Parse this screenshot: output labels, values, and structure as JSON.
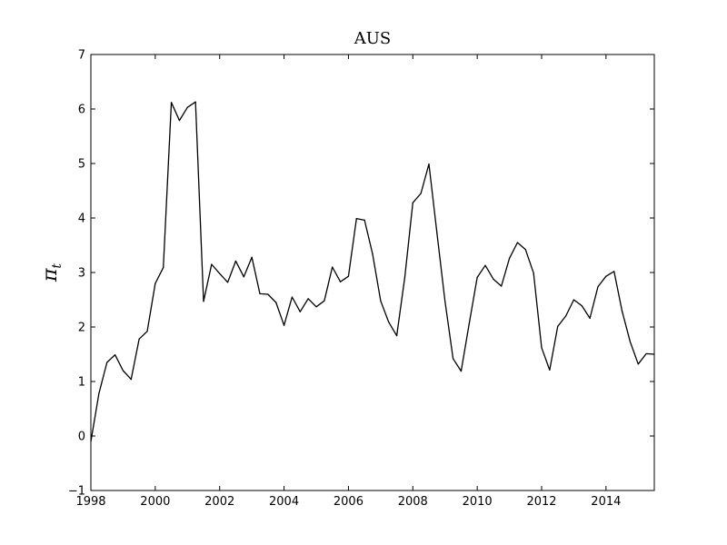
{
  "chart_data": {
    "type": "line",
    "title": "AUS",
    "xlabel": "",
    "ylabel": "π",
    "ylabel_subscript": "t",
    "xlim": [
      1998,
      2015.5
    ],
    "ylim": [
      -1,
      7
    ],
    "x_ticks": [
      1998,
      2000,
      2002,
      2004,
      2006,
      2008,
      2010,
      2012,
      2014
    ],
    "x_tick_labels": [
      "1998",
      "2000",
      "2002",
      "2004",
      "2006",
      "2008",
      "2010",
      "2012",
      "2014"
    ],
    "y_ticks": [
      -1,
      0,
      1,
      2,
      3,
      4,
      5,
      6,
      7
    ],
    "y_tick_labels": [
      "−1",
      "0",
      "1",
      "2",
      "3",
      "4",
      "5",
      "6",
      "7"
    ],
    "grid": false,
    "line_color": "#000000",
    "series": [
      {
        "x": [
          1998.0,
          1998.25,
          1998.5,
          1998.75,
          1999.0,
          1999.25,
          1999.5,
          1999.75,
          2000.0,
          2000.25,
          2000.5,
          2000.75,
          2001.0,
          2001.25,
          2001.5,
          2001.75,
          2002.0,
          2002.25,
          2002.5,
          2002.75,
          2003.0,
          2003.25,
          2003.5,
          2003.75,
          2004.0,
          2004.25,
          2004.5,
          2004.75,
          2005.0,
          2005.25,
          2005.5,
          2005.75,
          2006.0,
          2006.25,
          2006.5,
          2006.75,
          2007.0,
          2007.25,
          2007.5,
          2007.75,
          2008.0,
          2008.25,
          2008.5,
          2008.75,
          2009.0,
          2009.25,
          2009.5,
          2009.75,
          2010.0,
          2010.25,
          2010.5,
          2010.75,
          2011.0,
          2011.25,
          2011.5,
          2011.75,
          2012.0,
          2012.25,
          2012.5,
          2012.75,
          2013.0,
          2013.25,
          2013.5,
          2013.75,
          2014.0,
          2014.25,
          2014.5,
          2014.75,
          2015.0,
          2015.25,
          2015.5
        ],
        "y": [
          -0.1,
          0.78,
          1.35,
          1.49,
          1.2,
          1.04,
          1.78,
          1.92,
          2.8,
          3.09,
          6.12,
          5.79,
          6.03,
          6.13,
          2.47,
          3.15,
          2.98,
          2.82,
          3.21,
          2.92,
          3.28,
          2.61,
          2.6,
          2.45,
          2.03,
          2.55,
          2.28,
          2.52,
          2.37,
          2.48,
          3.1,
          2.83,
          2.93,
          3.99,
          3.96,
          3.34,
          2.48,
          2.09,
          1.84,
          2.91,
          4.28,
          4.45,
          4.99,
          3.72,
          2.47,
          1.42,
          1.19,
          2.06,
          2.91,
          3.13,
          2.88,
          2.75,
          3.26,
          3.55,
          3.42,
          2.99,
          1.62,
          1.21,
          2.01,
          2.2,
          2.5,
          2.39,
          2.16,
          2.74,
          2.93,
          3.02,
          2.29,
          1.73,
          1.32,
          1.51,
          1.5
        ]
      }
    ]
  }
}
